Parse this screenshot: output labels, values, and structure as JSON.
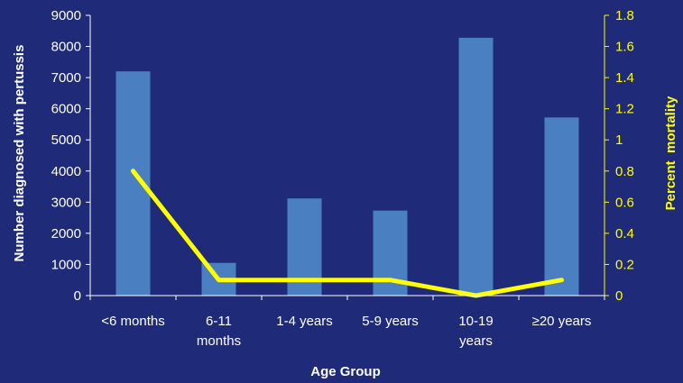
{
  "chart_data": {
    "type": "bar",
    "title": "",
    "categories": [
      [
        "<6 months"
      ],
      [
        "6-11",
        "months"
      ],
      [
        "1-4 years"
      ],
      [
        "5-9 years"
      ],
      [
        "10-19",
        "years"
      ],
      [
        "≥20 years"
      ]
    ],
    "xlabel": "Age Group",
    "ylabel_left": "Number diagnosed with pertussis",
    "ylabel_right": "Percent  mortality",
    "left_axis": {
      "min": 0,
      "max": 9000,
      "step": 1000
    },
    "right_axis": {
      "min": 0,
      "max": 1.8,
      "step": 0.2
    },
    "series": [
      {
        "kind": "bar",
        "axis": "left",
        "color": "#4A7FC1",
        "values": [
          7200,
          1050,
          3120,
          2730,
          8280,
          5720
        ]
      },
      {
        "kind": "line",
        "axis": "right",
        "color": "#FFFF00",
        "values": [
          0.8,
          0.1,
          0.1,
          0.1,
          0.0,
          0.1
        ]
      }
    ],
    "grid": false,
    "legend": "none",
    "colors": {
      "background": "#1F2A78",
      "axis_white": "#FFFFFF",
      "axis_yellow": "#FFFF00"
    }
  }
}
